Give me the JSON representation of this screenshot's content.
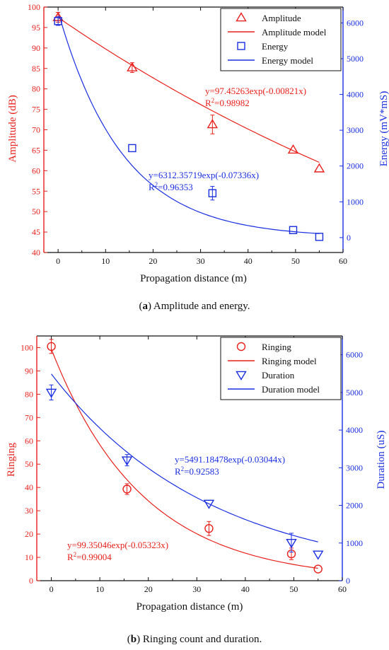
{
  "colors": {
    "red": "#e8201c",
    "blue": "#1a2ee0",
    "black": "#111111"
  },
  "captions": {
    "a_letter": "a",
    "a_text": " Amplitude and energy.",
    "b_letter": "b",
    "b_text": " Ringing count and duration."
  },
  "chart_data": [
    {
      "type": "scatter",
      "xlabel": "Propagation distance (m)",
      "ylabel_left": "Amplitude (dB)",
      "ylabel_right": "Energy (mV*mS)",
      "xlim": [
        -3,
        60
      ],
      "ylim_left": [
        40,
        100
      ],
      "ylim_right": [
        -417,
        6442
      ],
      "xticks": [
        0,
        10,
        20,
        30,
        40,
        50,
        60
      ],
      "yticks_left": [
        40,
        45,
        50,
        55,
        60,
        65,
        70,
        75,
        80,
        85,
        90,
        95,
        100
      ],
      "yticks_right": [
        0,
        1000,
        2000,
        3000,
        4000,
        5000,
        6000
      ],
      "legend_position": "top-right",
      "series": [
        {
          "name": "Amplitude",
          "axis": "left",
          "color": "#e8201c",
          "marker": "triangle-up",
          "x": [
            0,
            15.6,
            32.5,
            49.5,
            55
          ],
          "y": [
            97.5,
            85.2,
            71.3,
            65.1,
            60.5
          ],
          "err": [
            1.2,
            1.2,
            2.3,
            0,
            0
          ]
        },
        {
          "name": "Energy",
          "axis": "right",
          "color": "#1a2ee0",
          "marker": "square",
          "x": [
            0,
            15.6,
            32.5,
            49.5,
            55
          ],
          "y": [
            6050,
            2500,
            1240,
            210,
            20
          ],
          "err": [
            120,
            0,
            190,
            0,
            0
          ]
        }
      ],
      "models": [
        {
          "name": "Amplitude model",
          "axis": "left",
          "color": "#e8201c",
          "a": 97.45263,
          "b": -0.00821,
          "x_range": [
            0,
            55
          ]
        },
        {
          "name": "Energy model",
          "axis": "right",
          "color": "#1a2ee0",
          "a": 6312.35719,
          "b": -0.07336,
          "x_range": [
            0,
            55
          ]
        }
      ],
      "equations": [
        {
          "text": "y=97.45263exp(-0.00821x)",
          "r2_value": "=0.98982",
          "color": "#e8201c"
        },
        {
          "text": "y=6312.35719exp(-0.07336x)",
          "r2_value": "=0.96353",
          "color": "#1a2ee0"
        }
      ]
    },
    {
      "type": "scatter",
      "xlabel": "Propagation distance (m)",
      "ylabel_left": "Ringing",
      "ylabel_right": "Duration (uS)",
      "xlim": [
        -3,
        60
      ],
      "ylim_left": [
        0,
        105
      ],
      "ylim_right": [
        0,
        6500
      ],
      "xticks": [
        0,
        10,
        20,
        30,
        40,
        50,
        60
      ],
      "yticks_left": [
        0,
        10,
        20,
        30,
        40,
        50,
        60,
        70,
        80,
        90,
        100
      ],
      "yticks_right": [
        0,
        1000,
        2000,
        3000,
        4000,
        5000,
        6000
      ],
      "legend_position": "top-right",
      "series": [
        {
          "name": "Ringing",
          "axis": "left",
          "color": "#e8201c",
          "marker": "circle",
          "x": [
            0,
            15.6,
            32.5,
            49.5,
            55
          ],
          "y": [
            100.5,
            39.3,
            22.4,
            11.5,
            5
          ],
          "err": [
            3,
            2.3,
            3,
            2.5,
            0
          ]
        },
        {
          "name": "Duration",
          "axis": "right",
          "color": "#1a2ee0",
          "marker": "triangle-down",
          "x": [
            0,
            15.6,
            32.5,
            49.5,
            55
          ],
          "y": [
            5000,
            3200,
            2050,
            1010,
            700
          ],
          "err": [
            200,
            150,
            0,
            250,
            0
          ]
        }
      ],
      "models": [
        {
          "name": "Ringing model",
          "axis": "left",
          "color": "#e8201c",
          "a": 99.35046,
          "b": -0.05323,
          "x_range": [
            0,
            55
          ]
        },
        {
          "name": "Duration model",
          "axis": "right",
          "color": "#1a2ee0",
          "a": 5491.18478,
          "b": -0.03044,
          "x_range": [
            0,
            55
          ]
        }
      ],
      "equations": [
        {
          "text": "y=5491.18478exp(-0.03044x)",
          "r2_value": "=0.92583",
          "color": "#1a2ee0"
        },
        {
          "text": "y=99.35046exp(-0.05323x)",
          "r2_value": "=0.99004",
          "color": "#e8201c"
        }
      ]
    }
  ]
}
